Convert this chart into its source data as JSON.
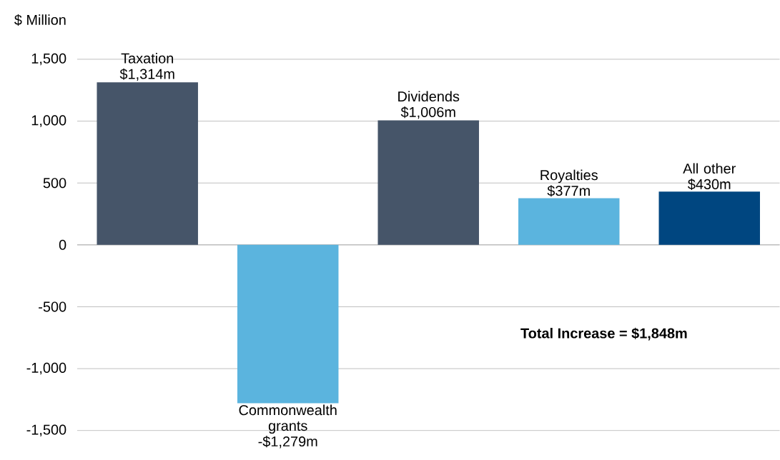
{
  "chart_data": {
    "type": "bar",
    "ylabel": "$ Million",
    "categories": [
      "Taxation",
      "Commonwealth grants",
      "Dividends",
      "Royalties",
      "All other"
    ],
    "values": [
      1314,
      -1279,
      1006,
      377,
      430
    ],
    "value_labels": [
      "$1,314m",
      "-$1,279m",
      "$1,006m",
      "$377m",
      "$430m"
    ],
    "colors": [
      "#465569",
      "#5bb4de",
      "#465569",
      "#5bb4de",
      "#004680"
    ],
    "ylim": [
      -1500,
      1500
    ],
    "yticks": [
      {
        "value": -1500,
        "label": "-1,500"
      },
      {
        "value": -1000,
        "label": "-1,000"
      },
      -500,
      0,
      500,
      {
        "value": 1000,
        "label": "1,000"
      },
      {
        "value": 1500,
        "label": "1,500"
      }
    ],
    "grid": "y",
    "annotations": [
      "**Total Increase = $1,848m**"
    ]
  }
}
